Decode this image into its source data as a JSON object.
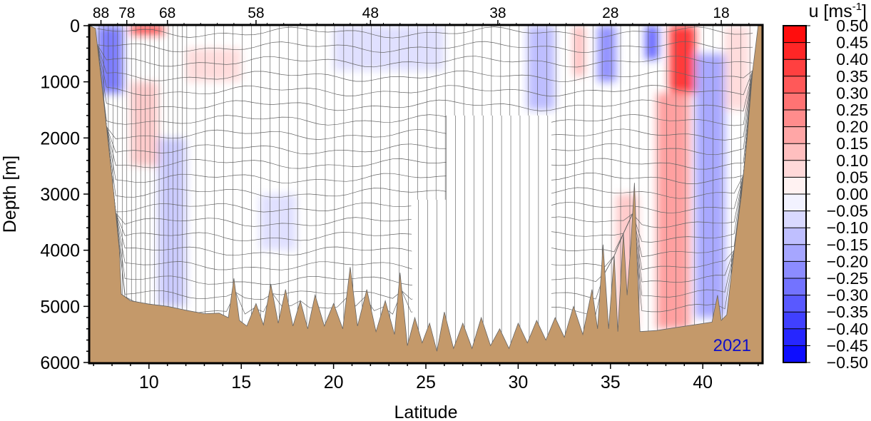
{
  "chart_data": {
    "type": "heatmap",
    "title": "",
    "xlabel": "Latitude",
    "ylabel": "Depth [m]",
    "xlim": [
      6.8,
      43.2
    ],
    "ylim": [
      0,
      6000
    ],
    "y_inverted": true,
    "x_ticks": [
      10,
      15,
      20,
      25,
      30,
      35,
      40
    ],
    "y_ticks": [
      0,
      1000,
      2000,
      3000,
      4000,
      5000,
      6000
    ],
    "station_ticks": [
      {
        "label": "88",
        "lat": 7.4
      },
      {
        "label": "78",
        "lat": 8.8
      },
      {
        "label": "68",
        "lat": 11.0
      },
      {
        "label": "58",
        "lat": 15.8
      },
      {
        "label": "48",
        "lat": 22.0
      },
      {
        "label": "38",
        "lat": 28.9
      },
      {
        "label": "28",
        "lat": 35.0
      },
      {
        "label": "18",
        "lat": 41.0
      }
    ],
    "year_label": "2021",
    "colorbar": {
      "label_prefix": "u [ms",
      "label_exponent": "-1",
      "label_suffix": "]",
      "min": -0.5,
      "max": 0.5,
      "levels": [
        "0.50",
        "0.45",
        "0.40",
        "0.35",
        "0.30",
        "0.25",
        "0.20",
        "0.15",
        "0.10",
        "0.05",
        "0.00",
        "−0.05",
        "−0.10",
        "−0.15",
        "−0.20",
        "−0.25",
        "−0.30",
        "−0.35",
        "−0.40",
        "−0.45",
        "−0.50"
      ]
    },
    "velocity_features": [
      {
        "lat0": 7.2,
        "lat1": 8.6,
        "d0": 0,
        "d1": 1200,
        "u": -0.3
      },
      {
        "lat0": 9.0,
        "lat1": 10.8,
        "d0": 0,
        "d1": 150,
        "u": 0.45
      },
      {
        "lat0": 9.0,
        "lat1": 10.5,
        "d0": 1000,
        "d1": 2500,
        "u": 0.12
      },
      {
        "lat0": 10.5,
        "lat1": 12.0,
        "d0": 2000,
        "d1": 5000,
        "u": -0.12
      },
      {
        "lat0": 12.0,
        "lat1": 15.0,
        "d0": 400,
        "d1": 1000,
        "u": 0.08
      },
      {
        "lat0": 20.0,
        "lat1": 26.0,
        "d0": 0,
        "d1": 800,
        "u": -0.07
      },
      {
        "lat0": 30.5,
        "lat1": 32.0,
        "d0": 0,
        "d1": 1500,
        "u": -0.15
      },
      {
        "lat0": 33.0,
        "lat1": 33.6,
        "d0": 0,
        "d1": 900,
        "u": 0.15
      },
      {
        "lat0": 34.3,
        "lat1": 35.3,
        "d0": 0,
        "d1": 1000,
        "u": -0.25
      },
      {
        "lat0": 36.9,
        "lat1": 37.6,
        "d0": 0,
        "d1": 600,
        "u": -0.35
      },
      {
        "lat0": 38.2,
        "lat1": 39.6,
        "d0": 0,
        "d1": 1200,
        "u": 0.45
      },
      {
        "lat0": 37.5,
        "lat1": 39.3,
        "d0": 1200,
        "d1": 5400,
        "u": 0.22
      },
      {
        "lat0": 39.6,
        "lat1": 41.2,
        "d0": 500,
        "d1": 5200,
        "u": -0.2
      },
      {
        "lat0": 41.2,
        "lat1": 42.5,
        "d0": 0,
        "d1": 1500,
        "u": 0.08
      },
      {
        "lat0": 35.3,
        "lat1": 36.5,
        "d0": 3000,
        "d1": 5400,
        "u": 0.12
      },
      {
        "lat0": 16.0,
        "lat1": 18.0,
        "d0": 3000,
        "d1": 4000,
        "u": -0.07
      }
    ],
    "gap_region": [
      {
        "lat": 24.2,
        "d": 3100
      },
      {
        "lat": 26.1,
        "d": 3100
      },
      {
        "lat": 26.1,
        "d": 1600
      },
      {
        "lat": 31.8,
        "d": 1600
      },
      {
        "lat": 31.8,
        "d": 4600
      }
    ],
    "bathymetry": [
      {
        "lat": 6.8,
        "d": 0
      },
      {
        "lat": 7.1,
        "d": 50
      },
      {
        "lat": 7.6,
        "d": 1500
      },
      {
        "lat": 8.1,
        "d": 3000
      },
      {
        "lat": 8.4,
        "d": 4000
      },
      {
        "lat": 8.5,
        "d": 4780
      },
      {
        "lat": 9.0,
        "d": 4900
      },
      {
        "lat": 10.0,
        "d": 4960
      },
      {
        "lat": 11.0,
        "d": 5000
      },
      {
        "lat": 12.0,
        "d": 5070
      },
      {
        "lat": 13.0,
        "d": 5130
      },
      {
        "lat": 13.8,
        "d": 5120
      },
      {
        "lat": 14.3,
        "d": 5200
      },
      {
        "lat": 14.6,
        "d": 4500
      },
      {
        "lat": 14.9,
        "d": 5250
      },
      {
        "lat": 15.3,
        "d": 5350
      },
      {
        "lat": 15.8,
        "d": 4950
      },
      {
        "lat": 16.2,
        "d": 5330
      },
      {
        "lat": 16.6,
        "d": 4600
      },
      {
        "lat": 17.0,
        "d": 5300
      },
      {
        "lat": 17.4,
        "d": 4700
      },
      {
        "lat": 17.8,
        "d": 5350
      },
      {
        "lat": 18.2,
        "d": 4900
      },
      {
        "lat": 18.6,
        "d": 5400
      },
      {
        "lat": 19.0,
        "d": 4800
      },
      {
        "lat": 19.5,
        "d": 5350
      },
      {
        "lat": 20.0,
        "d": 4950
      },
      {
        "lat": 20.5,
        "d": 5400
      },
      {
        "lat": 20.9,
        "d": 4300
      },
      {
        "lat": 21.3,
        "d": 5350
      },
      {
        "lat": 21.8,
        "d": 4700
      },
      {
        "lat": 22.3,
        "d": 5450
      },
      {
        "lat": 22.8,
        "d": 4900
      },
      {
        "lat": 23.3,
        "d": 5500
      },
      {
        "lat": 23.6,
        "d": 4400
      },
      {
        "lat": 24.0,
        "d": 5700
      },
      {
        "lat": 24.4,
        "d": 5200
      },
      {
        "lat": 24.8,
        "d": 5650
      },
      {
        "lat": 25.2,
        "d": 5300
      },
      {
        "lat": 25.6,
        "d": 5800
      },
      {
        "lat": 26.0,
        "d": 5100
      },
      {
        "lat": 26.5,
        "d": 5750
      },
      {
        "lat": 27.0,
        "d": 5300
      },
      {
        "lat": 27.5,
        "d": 5750
      },
      {
        "lat": 28.0,
        "d": 5200
      },
      {
        "lat": 28.5,
        "d": 5700
      },
      {
        "lat": 29.0,
        "d": 5400
      },
      {
        "lat": 29.5,
        "d": 5750
      },
      {
        "lat": 30.0,
        "d": 5300
      },
      {
        "lat": 30.5,
        "d": 5650
      },
      {
        "lat": 31.0,
        "d": 5250
      },
      {
        "lat": 31.5,
        "d": 5600
      },
      {
        "lat": 32.0,
        "d": 5200
      },
      {
        "lat": 32.5,
        "d": 5550
      },
      {
        "lat": 33.0,
        "d": 5000
      },
      {
        "lat": 33.5,
        "d": 5500
      },
      {
        "lat": 34.0,
        "d": 4700
      },
      {
        "lat": 34.3,
        "d": 5400
      },
      {
        "lat": 34.6,
        "d": 3900
      },
      {
        "lat": 34.9,
        "d": 5400
      },
      {
        "lat": 35.2,
        "d": 4100
      },
      {
        "lat": 35.4,
        "d": 5450
      },
      {
        "lat": 35.7,
        "d": 3700
      },
      {
        "lat": 35.9,
        "d": 4800
      },
      {
        "lat": 36.1,
        "d": 3900
      },
      {
        "lat": 36.3,
        "d": 2800
      },
      {
        "lat": 36.5,
        "d": 4700
      },
      {
        "lat": 36.6,
        "d": 5450
      },
      {
        "lat": 37.5,
        "d": 5430
      },
      {
        "lat": 38.5,
        "d": 5380
      },
      {
        "lat": 39.5,
        "d": 5330
      },
      {
        "lat": 40.5,
        "d": 5280
      },
      {
        "lat": 40.8,
        "d": 4800
      },
      {
        "lat": 41.0,
        "d": 5250
      },
      {
        "lat": 41.3,
        "d": 5150
      },
      {
        "lat": 41.7,
        "d": 4000
      },
      {
        "lat": 42.1,
        "d": 3000
      },
      {
        "lat": 42.4,
        "d": 2000
      },
      {
        "lat": 42.7,
        "d": 800
      },
      {
        "lat": 43.0,
        "d": 0
      }
    ]
  }
}
